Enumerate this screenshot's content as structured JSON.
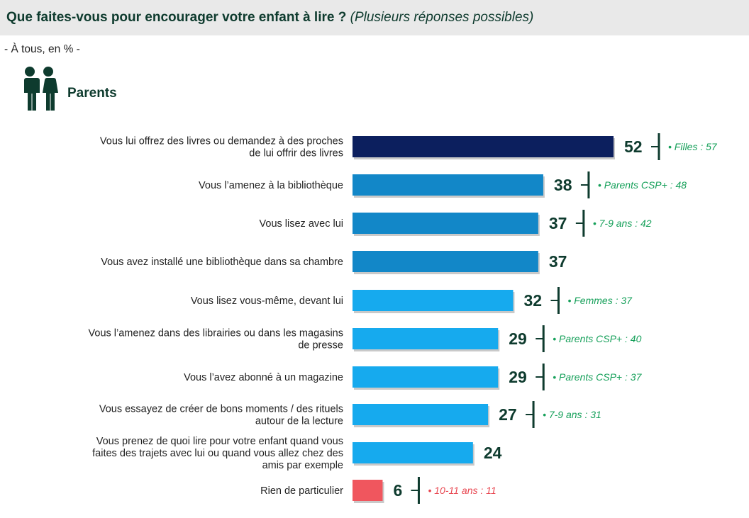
{
  "header": {
    "title": "Que faites-vous pour encourager votre enfant à lire ?",
    "title_note": "(Plusieurs réponses possibles)",
    "subtitle": "- À tous, en % -",
    "section_label": "Parents"
  },
  "icons": {
    "section_icon": "people-icon"
  },
  "colors": {
    "top": "#0c1f5e",
    "mid": "#1287c8",
    "light": "#16aaee",
    "none": "#f0565e",
    "value_text": "#0e3b2e",
    "note_green": "#16a05a",
    "note_red": "#e84650"
  },
  "chart_data": {
    "type": "bar",
    "orientation": "horizontal",
    "categories": [
      "Vous lui offrez des livres ou demandez à des proches de lui offrir des livres",
      "Vous l’amenez à la bibliothèque",
      "Vous lisez avec lui",
      "Vous avez installé une bibliothèque dans sa chambre",
      "Vous lisez vous-même, devant lui",
      "Vous l’amenez dans des librairies ou dans les magasins de presse",
      "Vous l’avez abonné à un magazine",
      "Vous essayez de créer de bons moments / des rituels autour de la lecture",
      "Vous prenez de quoi lire pour votre enfant quand vous faites des trajets avec lui ou quand vous allez chez des amis par exemple",
      "Rien de particulier"
    ],
    "category_lines": [
      [
        "Vous lui offrez des livres ou demandez à des proches",
        "de lui offrir des livres"
      ],
      [
        "Vous l’amenez à la bibliothèque"
      ],
      [
        "Vous lisez avec lui"
      ],
      [
        "Vous avez installé une bibliothèque dans sa chambre"
      ],
      [
        "Vous lisez vous-même, devant lui"
      ],
      [
        "Vous l’amenez dans des librairies ou dans les magasins",
        "de presse"
      ],
      [
        "Vous l’avez abonné à un magazine"
      ],
      [
        "Vous essayez de créer de bons moments / des rituels",
        "autour de la lecture"
      ],
      [
        "Vous prenez de quoi lire pour votre enfant quand vous",
        "faites des trajets avec lui ou quand vous allez chez des",
        "amis par exemple"
      ],
      [
        "Rien de particulier"
      ]
    ],
    "values": [
      52,
      38,
      37,
      37,
      32,
      29,
      29,
      27,
      24,
      6
    ],
    "bar_color_keys": [
      "top",
      "mid",
      "mid",
      "mid",
      "light",
      "light",
      "light",
      "light",
      "light",
      "none"
    ],
    "annotations": [
      "• Filles : 57",
      "• Parents CSP+ : 48",
      "• 7-9 ans : 42",
      "",
      "• Femmes : 37",
      "• Parents CSP+ : 40",
      "• Parents CSP+ : 37",
      "• 7-9 ans : 31",
      "",
      "• 10-11 ans : 11"
    ],
    "annotation_color_keys": [
      "note_green",
      "note_green",
      "note_green",
      "",
      "note_green",
      "note_green",
      "note_green",
      "note_green",
      "",
      "note_red"
    ],
    "xlim": [
      0,
      52
    ],
    "grid": false,
    "legend": "none"
  }
}
